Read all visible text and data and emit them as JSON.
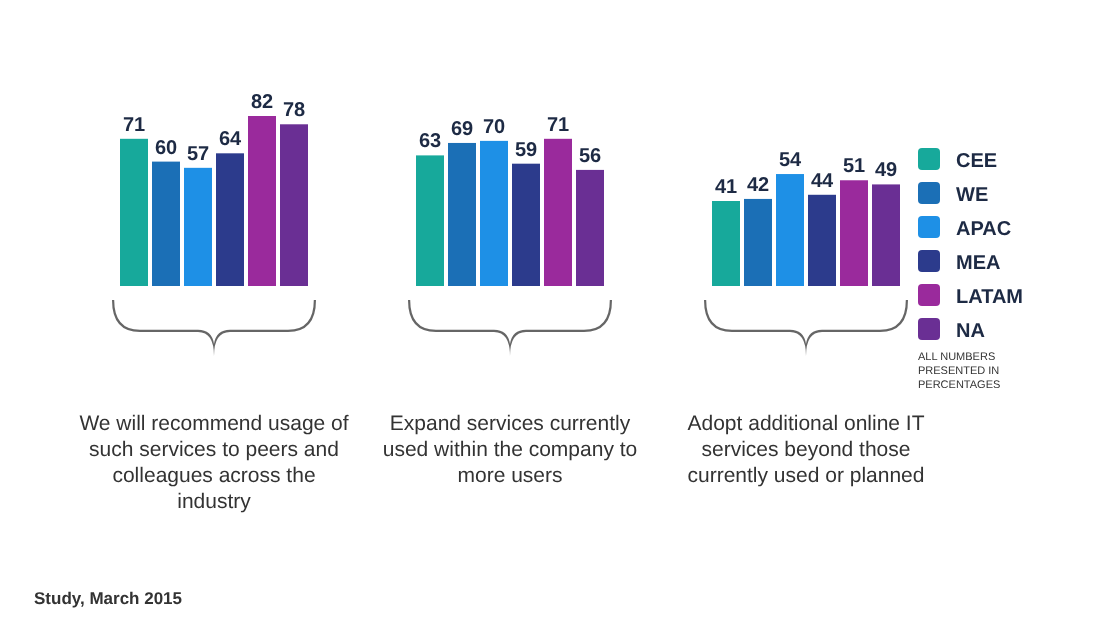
{
  "chart_data": {
    "type": "bar",
    "categories": [
      "We will recommend usage of such services to peers and colleagues across the industry",
      "Expand services currently used within the company to more users",
      "Adopt additional online IT services beyond those currently used or planned"
    ],
    "series": [
      {
        "name": "CEE",
        "color": "#17a99b",
        "values": [
          71,
          63,
          41
        ]
      },
      {
        "name": "WE",
        "color": "#1b6fb6",
        "values": [
          60,
          69,
          42
        ]
      },
      {
        "name": "APAC",
        "color": "#1e90e6",
        "values": [
          57,
          70,
          54
        ]
      },
      {
        "name": "MEA",
        "color": "#2c3b8c",
        "values": [
          64,
          59,
          44
        ]
      },
      {
        "name": "LATAM",
        "color": "#9a2a9c",
        "values": [
          82,
          71,
          51
        ]
      },
      {
        "name": "NA",
        "color": "#6a2f94",
        "values": [
          78,
          56,
          49
        ]
      }
    ],
    "data_labels": true,
    "legend": "right",
    "annotations": [
      "ALL NUMBERS PRESENTED IN PERCENTAGES",
      "Study, March 2015"
    ]
  }
}
